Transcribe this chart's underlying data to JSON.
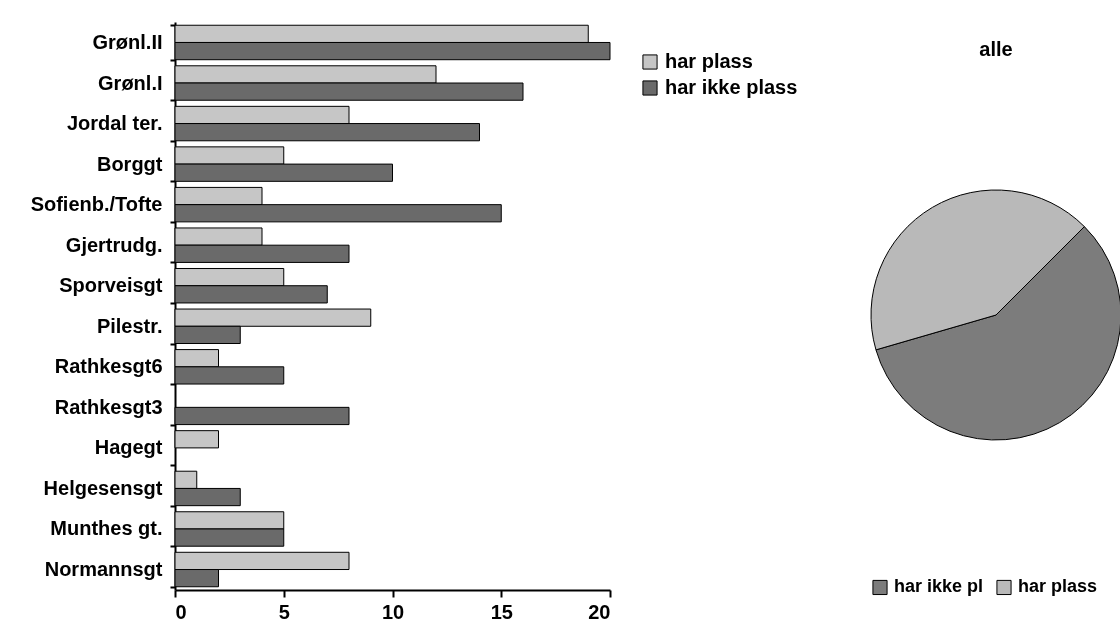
{
  "chart_data": [
    {
      "type": "bar",
      "orientation": "horizontal",
      "categories": [
        "Grønl.II",
        "Grønl.I",
        "Jordal ter.",
        "Borggt",
        "Sofienb./Tofte",
        "Gjertrudg.",
        "Sporveisgt",
        "Pilestr.",
        "Rathkesgt6",
        "Rathkesgt3",
        "Hagegt",
        "Helgesensgt",
        "Munthes gt.",
        "Normannsgt"
      ],
      "series": [
        {
          "name": "har plass",
          "color": "#c6c6c6",
          "values": [
            19,
            12,
            8,
            5,
            4,
            4,
            5,
            9,
            2,
            0,
            2,
            1,
            5,
            8
          ]
        },
        {
          "name": "har ikke plass",
          "color": "#6a6a6a",
          "values": [
            20,
            16,
            14,
            10,
            15,
            8,
            7,
            3,
            5,
            8,
            0,
            3,
            5,
            2
          ]
        }
      ],
      "xlim": [
        0,
        20
      ],
      "xticks": [
        0,
        5,
        10,
        15,
        20
      ],
      "legend": "top right"
    },
    {
      "type": "pie",
      "title": "alle",
      "categories": [
        "har ikke pl",
        "har plass"
      ],
      "values": [
        58,
        42
      ],
      "colors": [
        "#7c7c7c",
        "#b9b9b9"
      ],
      "legend": "bottom"
    }
  ]
}
